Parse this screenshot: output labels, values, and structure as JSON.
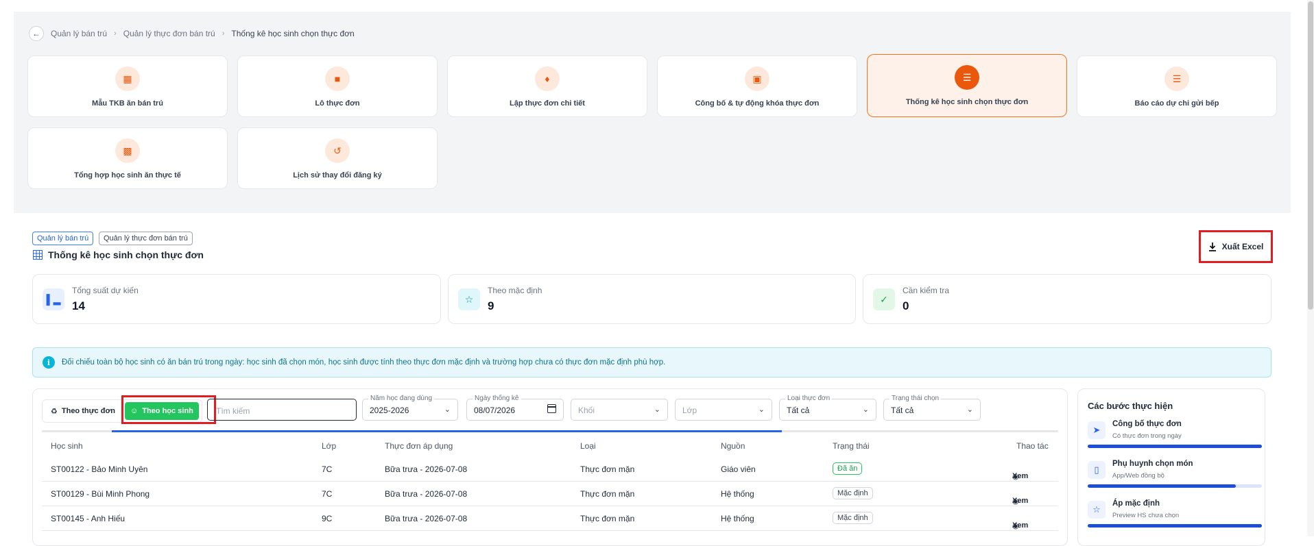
{
  "breadcrumb": {
    "items": [
      "Quản lý bán trú",
      "Quản lý thực đơn bán trú",
      "Thống kê học sinh chọn thực đơn"
    ]
  },
  "modules": [
    {
      "label": "Mẫu TKB ăn bán trú",
      "icon": "calendar-icon",
      "active": false
    },
    {
      "label": "Lô thực đơn",
      "icon": "box-icon",
      "active": false
    },
    {
      "label": "Lập thực đơn chi tiết",
      "icon": "tag-icon",
      "active": false
    },
    {
      "label": "Công bố & tự động khóa thực đơn",
      "icon": "lock-icon",
      "active": false
    },
    {
      "label": "Thống kê học sinh chọn thực đơn",
      "icon": "chart-icon",
      "active": true
    },
    {
      "label": "Báo cáo dự chi gửi bếp",
      "icon": "report-icon",
      "active": false
    },
    {
      "label": "Tổng hợp học sinh ăn thực tế",
      "icon": "briefcase-icon",
      "active": false
    },
    {
      "label": "Lịch sử thay đổi đăng ký",
      "icon": "history-icon",
      "active": false
    }
  ],
  "header": {
    "tags": [
      "Quản lý bán trú",
      "Quản lý thực đơn bán trú"
    ],
    "title": "Thống kê học sinh chọn thực đơn",
    "export_label": "Xuất Excel"
  },
  "stats": [
    {
      "label": "Tổng suất dự kiến",
      "value": "14",
      "icon": "chart-bar-icon",
      "color": "#2563eb",
      "bg": "#e8efff"
    },
    {
      "label": "Theo mặc định",
      "value": "9",
      "icon": "star-icon",
      "color": "#0891b2",
      "bg": "#dff6fa"
    },
    {
      "label": "Cần kiểm tra",
      "value": "0",
      "icon": "check-circle-icon",
      "color": "#16a34a",
      "bg": "#e3f7e8"
    }
  ],
  "info": {
    "text": "Đối chiếu toàn bộ học sinh có ăn bán trú trong ngày: học sinh đã chọn món, học sinh được tính theo thực đơn mặc định và trường hợp chưa có thực đơn mặc định phù hợp."
  },
  "filters": {
    "toggle": [
      "Theo thực đơn",
      "Theo học sinh"
    ],
    "search_placeholder": "Tìm kiếm",
    "school_year": {
      "label": "Năm học đang dùng",
      "value": "2025-2026"
    },
    "date": {
      "label": "Ngày thống kê",
      "value": "08/07/2026"
    },
    "grade": {
      "placeholder": "Khối"
    },
    "class": {
      "placeholder": "Lớp"
    },
    "menu_type": {
      "label": "Loại thực đơn",
      "value": "Tất cả"
    },
    "status": {
      "label": "Trạng thái chọn",
      "value": "Tất cả"
    }
  },
  "table": {
    "columns": [
      "Học sinh",
      "Lớp",
      "Thực đơn áp dụng",
      "Loại",
      "Nguồn",
      "Trạng thái",
      "Thao tác"
    ],
    "rows": [
      {
        "student": "ST00122 - Bảo Minh Uyên",
        "class": "7C",
        "menu": "Bữa trưa - 2026-07-08",
        "type": "Thực đơn mặn",
        "source": "Giáo viên",
        "status": "Đã ăn",
        "status_kind": "done",
        "action": "Xem"
      },
      {
        "student": "ST00129 - Bùi Minh Phong",
        "class": "7C",
        "menu": "Bữa trưa - 2026-07-08",
        "type": "Thực đơn mặn",
        "source": "Hệ thống",
        "status": "Mặc định",
        "status_kind": "default",
        "action": "Xem"
      },
      {
        "student": "ST00145 - Anh Hiếu",
        "class": "9C",
        "menu": "Bữa trưa - 2026-07-08",
        "type": "Thực đơn mặn",
        "source": "Hệ thống",
        "status": "Mặc định",
        "status_kind": "default",
        "action": "Xem"
      }
    ]
  },
  "steps": {
    "title": "Các bước thực hiện",
    "items": [
      {
        "title": "Công bố thực đơn",
        "subtitle": "Có thực đơn trong ngày",
        "progress": 1.0,
        "icon": "send-icon"
      },
      {
        "title": "Phụ huynh chọn món",
        "subtitle": "App/Web đồng bộ",
        "progress": 0.85,
        "icon": "phone-icon"
      },
      {
        "title": "Áp mặc định",
        "subtitle": "Preview HS chưa chọn",
        "progress": 1.0,
        "icon": "star-icon"
      }
    ]
  }
}
